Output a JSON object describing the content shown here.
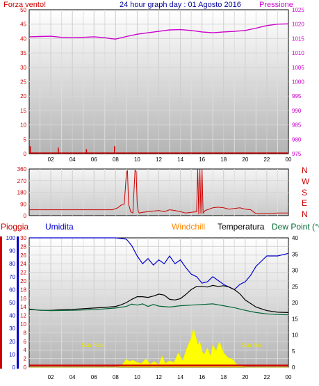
{
  "header": {
    "left": "Forza vento!",
    "title": "24 hour graph day : 01 Agosto 2016",
    "right": "Pressione"
  },
  "legend": {
    "rain": "Pioggia",
    "humidity": "Umidita",
    "windchill": "Windchill",
    "temperature": "Temperatura",
    "dewpoint": "Dew Point (°C"
  },
  "annotations": {
    "sunrise": "Sun Rise",
    "sunset": "Sun Set"
  },
  "colors": {
    "wind": "#cc0000",
    "pressure": "#cc00cc",
    "humidity": "#0000cc",
    "windchill": "#ff8800",
    "temperature": "#000000",
    "dewpoint": "#006633",
    "solar": "#ffff00",
    "rain": "#cc0000"
  },
  "chart_data": [
    {
      "type": "line",
      "x_ticks": [
        "02",
        "04",
        "06",
        "08",
        "10",
        "12",
        "14",
        "16",
        "18",
        "20",
        "22",
        "00"
      ],
      "ylabel": "Forza vento!",
      "ylim": [
        0,
        50
      ],
      "y_ticks": [
        "50",
        "45",
        "40",
        "35",
        "30",
        "25",
        "20",
        "15",
        "10",
        "5",
        "0"
      ],
      "y2label": "Pressione",
      "y2lim": [
        975,
        1025
      ],
      "y2_ticks": [
        "1025",
        "1020",
        "1015",
        "1010",
        "1005",
        "1000",
        "995",
        "990",
        "985",
        "980",
        "975"
      ],
      "series": [
        {
          "name": "Pressione",
          "axis": "right",
          "x": [
            0,
            1,
            2,
            3,
            4,
            5,
            6,
            7,
            7.5,
            8,
            9,
            10,
            11,
            12,
            13,
            14,
            15,
            16,
            17,
            18,
            19,
            20,
            21,
            22,
            23,
            24
          ],
          "values": [
            1015.6,
            1015.7,
            1015.8,
            1015.4,
            1015.3,
            1015.4,
            1015.6,
            1015.3,
            1015.0,
            1014.8,
            1015.7,
            1016.5,
            1017.0,
            1017.5,
            1018.0,
            1018.1,
            1017.8,
            1017.3,
            1017.0,
            1017.3,
            1017.5,
            1017.8,
            1018.6,
            1019.5,
            1020.0,
            1020.1
          ]
        },
        {
          "name": "Forza vento!",
          "axis": "left",
          "x": [
            0.1,
            2.7,
            5.3,
            7.9
          ],
          "values": [
            2.5,
            2.0,
            1.5,
            2.5
          ]
        }
      ]
    },
    {
      "type": "line",
      "x_ticks": [
        "02",
        "04",
        "06",
        "08",
        "10",
        "12",
        "14",
        "16",
        "18",
        "20",
        "22",
        "00"
      ],
      "ylim": [
        0,
        360
      ],
      "y_ticks": [
        "360",
        "270",
        "180",
        "90",
        "0"
      ],
      "right_labels": [
        "N",
        "W",
        "S",
        "E",
        "N"
      ],
      "series": [
        {
          "name": "Direzione vento",
          "x": [
            0,
            2,
            4,
            6,
            7.7,
            8.2,
            8.5,
            8.8,
            9.0,
            9.1,
            9.2,
            9.3,
            9.4,
            9.6,
            9.8,
            9.9,
            10.0,
            10.1,
            10.2,
            10.5,
            11.0,
            11.5,
            12,
            12.5,
            13,
            13.5,
            14,
            14.5,
            15,
            15.5,
            15.6,
            15.7,
            15.8,
            15.9,
            16.0,
            16.1,
            16.2,
            16.3,
            16.5,
            17,
            17.5,
            18,
            18.5,
            19,
            19.5,
            20,
            20.5,
            21,
            22,
            23,
            24
          ],
          "values": [
            45,
            45,
            45,
            45,
            45,
            60,
            80,
            90,
            330,
            350,
            90,
            60,
            30,
            20,
            350,
            340,
            90,
            30,
            20,
            25,
            30,
            35,
            40,
            30,
            45,
            40,
            30,
            20,
            25,
            30,
            360,
            10,
            360,
            15,
            360,
            20,
            30,
            40,
            45,
            60,
            65,
            60,
            50,
            55,
            60,
            50,
            45,
            15,
            15,
            20,
            20
          ]
        }
      ]
    },
    {
      "type": "line",
      "x_ticks": [
        "02",
        "04",
        "06",
        "08",
        "10",
        "12",
        "14",
        "16",
        "18",
        "20",
        "22",
        "00"
      ],
      "ylabel": "Pioggia",
      "ylim": [
        0,
        30
      ],
      "y_ticks": [
        "30",
        "28",
        "26",
        "24",
        "22",
        "20",
        "18",
        "16",
        "14",
        "12",
        "10",
        "8",
        "6",
        "4",
        "2",
        "0"
      ],
      "humidity_ticks": [
        "100",
        "90",
        "80",
        "70",
        "60",
        "50",
        "40",
        "30",
        "20",
        "10",
        "0"
      ],
      "y2lim": [
        0,
        40
      ],
      "y2_ticks": [
        "40",
        "35",
        "30",
        "25",
        "20",
        "15",
        "10",
        "5",
        "0"
      ],
      "series": [
        {
          "name": "Umidita",
          "axis": "humidity",
          "x": [
            0,
            2,
            4,
            6,
            8,
            9,
            9.5,
            10,
            10.5,
            11,
            11.5,
            12,
            12.5,
            13,
            13.5,
            14,
            14.5,
            15,
            15.5,
            16,
            16.5,
            17,
            17.5,
            18,
            18.5,
            19,
            19.5,
            20,
            20.5,
            21,
            21.5,
            22,
            23,
            24
          ],
          "values": [
            100,
            100,
            100,
            100,
            100,
            99,
            94,
            86,
            80,
            84,
            79,
            83,
            80,
            86,
            80,
            83,
            77,
            72,
            70,
            65,
            66,
            70,
            67,
            64,
            62,
            60,
            64,
            66,
            71,
            78,
            82,
            86,
            86,
            88
          ]
        },
        {
          "name": "Temperatura",
          "axis": "right",
          "x": [
            0,
            1,
            2,
            3,
            4,
            5,
            6,
            7,
            8,
            8.5,
            9,
            9.5,
            10,
            10.5,
            11,
            11.5,
            12,
            12.5,
            13,
            13.5,
            14,
            14.5,
            15,
            15.5,
            16,
            16.5,
            17,
            17.5,
            18,
            18.5,
            19,
            19.5,
            20,
            21,
            22,
            23,
            24
          ],
          "values": [
            18.0,
            17.6,
            17.6,
            17.8,
            17.9,
            18.1,
            18.3,
            18.5,
            18.8,
            19.3,
            20.0,
            21.0,
            21.8,
            21.8,
            21.6,
            22.0,
            22.6,
            22.3,
            21.0,
            20.8,
            21.2,
            22.5,
            24.0,
            25.0,
            25.0,
            24.8,
            25.3,
            25.0,
            25.2,
            24.8,
            24.0,
            22.7,
            20.8,
            18.6,
            17.5,
            17.0,
            16.9
          ]
        },
        {
          "name": "Dew Point (°C",
          "axis": "right",
          "x": [
            0,
            2,
            4,
            6,
            8,
            9,
            9.5,
            10,
            10.5,
            11,
            11.5,
            12,
            13,
            14,
            15,
            16,
            17,
            18,
            19,
            20,
            21,
            22,
            23,
            24
          ],
          "values": [
            17.8,
            17.5,
            17.6,
            17.8,
            18.3,
            18.8,
            19.5,
            19.2,
            19.6,
            18.8,
            19.4,
            18.9,
            18.6,
            19.0,
            19.2,
            19.4,
            19.6,
            19.0,
            18.4,
            17.6,
            16.9,
            16.5,
            16.3,
            16.2
          ]
        },
        {
          "name": "Sun",
          "axis": "right",
          "type": "area",
          "x": [
            0,
            8.2,
            8.6,
            9.0,
            9.3,
            9.6,
            10.0,
            10.4,
            10.8,
            11.2,
            11.6,
            12.0,
            12.3,
            12.6,
            13.0,
            13.4,
            13.8,
            14.2,
            14.6,
            15.0,
            15.2,
            15.4,
            15.6,
            15.8,
            16.0,
            16.2,
            16.5,
            16.8,
            17.0,
            17.3,
            17.6,
            18.0,
            18.4,
            18.8,
            19.2,
            19.6,
            20.0,
            24
          ],
          "values": [
            0,
            0,
            0.8,
            2.5,
            1.8,
            2.2,
            1.5,
            1.2,
            2.6,
            1.0,
            1.8,
            0.8,
            3.5,
            1.2,
            2.0,
            1.5,
            4.5,
            2.0,
            6.0,
            9.0,
            12.0,
            10.0,
            7.0,
            8.0,
            5.0,
            4.0,
            6.0,
            3.5,
            7.0,
            5.0,
            8.0,
            4.5,
            3.0,
            2.5,
            1.0,
            0.5,
            0,
            0
          ]
        },
        {
          "name": "Pioggia",
          "axis": "left",
          "x": [
            0,
            24
          ],
          "values": [
            0.4,
            0.4
          ]
        }
      ]
    }
  ]
}
